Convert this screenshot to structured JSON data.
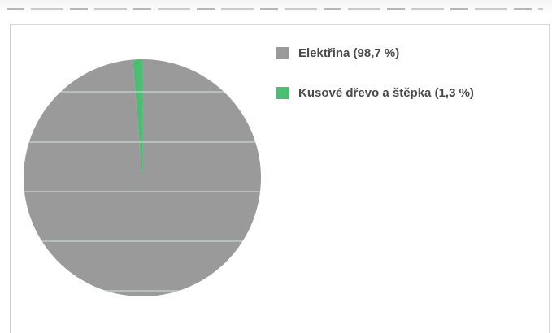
{
  "chart_data": {
    "type": "pie",
    "title": "",
    "categories": [
      "Elektřina (98,7 %)",
      "Kusové dřevo a štěpka (1,3 %)"
    ],
    "values": [
      98.7,
      1.3
    ],
    "colors": [
      "#9a9a9a",
      "#4dbd74"
    ],
    "legend_position": "right",
    "start_angle_deg": 0,
    "direction": "clockwise"
  },
  "legend": {
    "items": [
      {
        "label": "Elektřina (98,7 %)",
        "color": "#9a9a9a"
      },
      {
        "label": "Kusové dřevo a štěpka (1,3 %)",
        "color": "#4dbd74"
      }
    ]
  }
}
